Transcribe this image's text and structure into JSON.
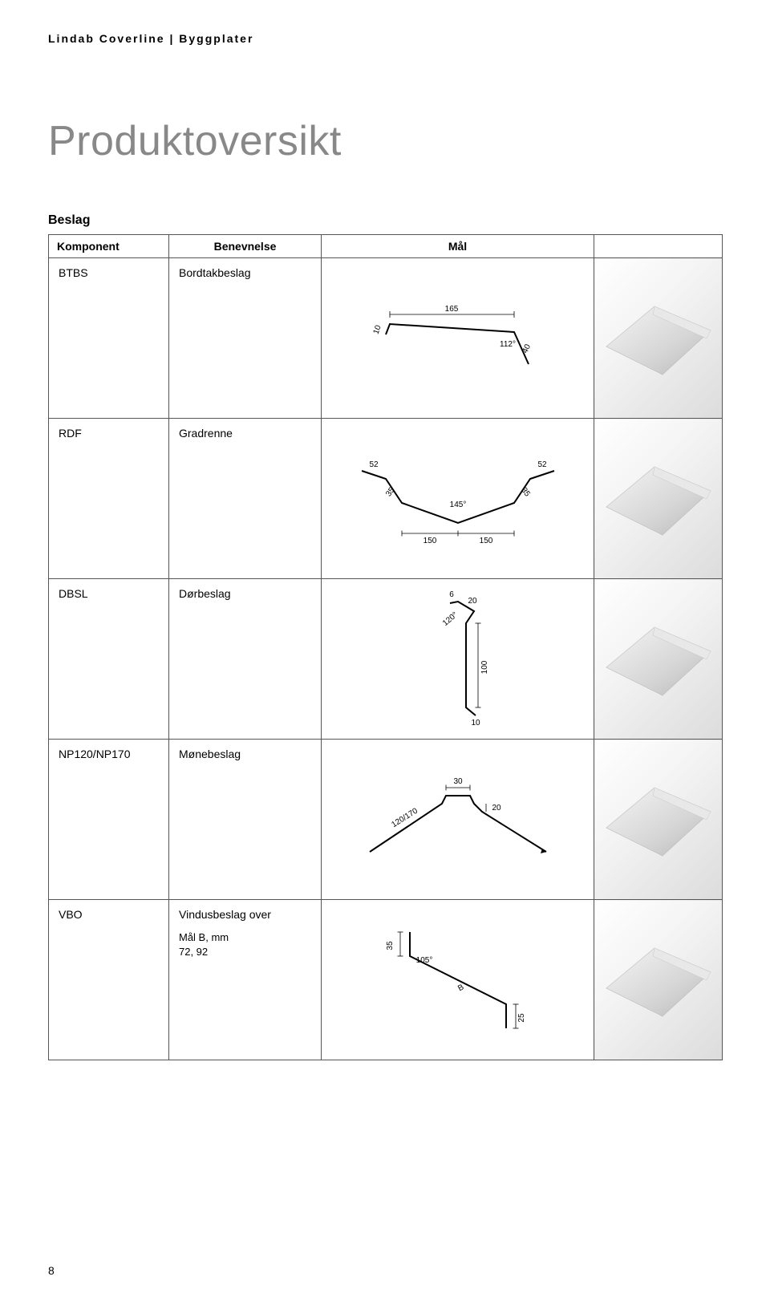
{
  "header": "Lindab Coverline | Byggplater",
  "title": "Produktoversikt",
  "section": "Beslag",
  "columns": {
    "component": "Komponent",
    "name": "Benevnelse",
    "dim": "Mål"
  },
  "col_widths": {
    "component": 150,
    "name": 190,
    "dim": 340,
    "photo": 160
  },
  "rows": [
    {
      "code": "BTBS",
      "name": "Bordtakbeslag",
      "diagram": {
        "type": "btbs",
        "dims": {
          "top": "165",
          "left": "10",
          "right": "40",
          "angle": "112°"
        },
        "stroke": "#000000",
        "bg": "#ffffff"
      }
    },
    {
      "code": "RDF",
      "name": "Gradrenne",
      "diagram": {
        "type": "rdf",
        "dims": {
          "wing": "52",
          "side": "35",
          "bottom": "150",
          "angle": "145°"
        },
        "stroke": "#000000",
        "bg": "#ffffff"
      }
    },
    {
      "code": "DBSL",
      "name": "Dørbeslag",
      "diagram": {
        "type": "dbsl",
        "dims": {
          "top_small": "6",
          "top": "20",
          "angle": "120°",
          "height": "100",
          "foot": "10"
        },
        "stroke": "#000000",
        "bg": "#ffffff"
      }
    },
    {
      "code": "NP120/NP170",
      "name": "Mønebeslag",
      "diagram": {
        "type": "np",
        "dims": {
          "top": "30",
          "step": "20",
          "wing": "120/170"
        },
        "stroke": "#000000",
        "bg": "#ffffff"
      }
    },
    {
      "code": "VBO",
      "name": "Vindusbeslag over",
      "sub": "Mål B, mm\n72, 92",
      "diagram": {
        "type": "vbo",
        "dims": {
          "top": "35",
          "angle": "105°",
          "b": "B",
          "foot": "25"
        },
        "stroke": "#000000",
        "bg": "#ffffff"
      }
    }
  ],
  "page_number": "8"
}
